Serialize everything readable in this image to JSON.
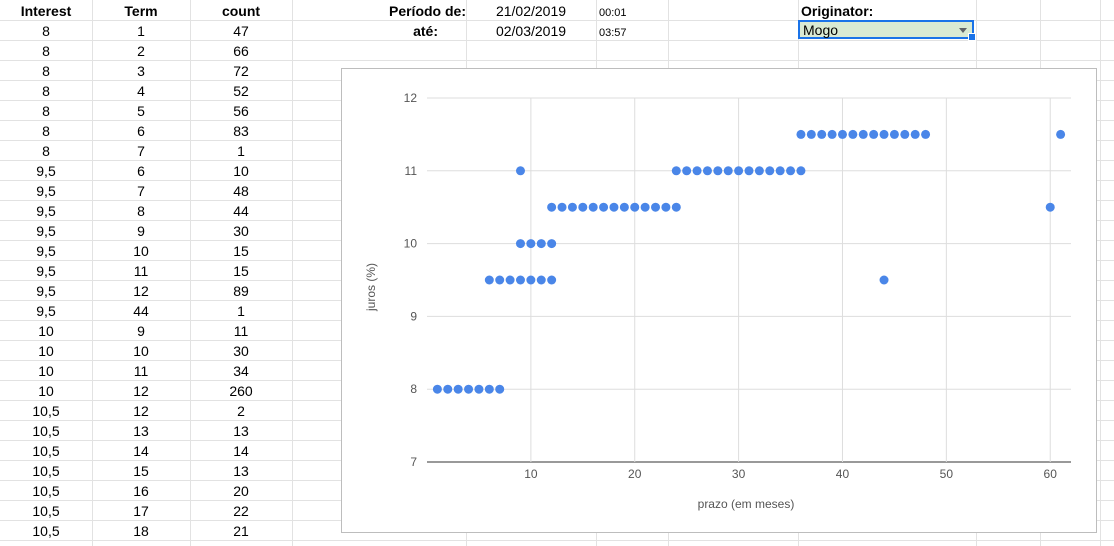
{
  "table": {
    "headers": [
      "Interest",
      "Term",
      "count"
    ],
    "rows": [
      [
        "8",
        "1",
        "47"
      ],
      [
        "8",
        "2",
        "66"
      ],
      [
        "8",
        "3",
        "72"
      ],
      [
        "8",
        "4",
        "52"
      ],
      [
        "8",
        "5",
        "56"
      ],
      [
        "8",
        "6",
        "83"
      ],
      [
        "8",
        "7",
        "1"
      ],
      [
        "9,5",
        "6",
        "10"
      ],
      [
        "9,5",
        "7",
        "48"
      ],
      [
        "9,5",
        "8",
        "44"
      ],
      [
        "9,5",
        "9",
        "30"
      ],
      [
        "9,5",
        "10",
        "15"
      ],
      [
        "9,5",
        "11",
        "15"
      ],
      [
        "9,5",
        "12",
        "89"
      ],
      [
        "9,5",
        "44",
        "1"
      ],
      [
        "10",
        "9",
        "11"
      ],
      [
        "10",
        "10",
        "30"
      ],
      [
        "10",
        "11",
        "34"
      ],
      [
        "10",
        "12",
        "260"
      ],
      [
        "10,5",
        "12",
        "2"
      ],
      [
        "10,5",
        "13",
        "13"
      ],
      [
        "10,5",
        "14",
        "14"
      ],
      [
        "10,5",
        "15",
        "13"
      ],
      [
        "10,5",
        "16",
        "20"
      ],
      [
        "10,5",
        "17",
        "22"
      ],
      [
        "10,5",
        "18",
        "21"
      ]
    ]
  },
  "filters": {
    "periodo_label": "Período de:",
    "ate_label": "até:",
    "start_date": "21/02/2019",
    "start_time": "00:01",
    "end_date": "02/03/2019",
    "end_time": "03:57",
    "originator_label": "Originator:",
    "originator_value": "Mogo"
  },
  "chart_data": {
    "type": "scatter",
    "title": "",
    "xlabel": "prazo (em meses)",
    "ylabel": "juros (%)",
    "xlim": [
      0,
      62
    ],
    "ylim": [
      7,
      12
    ],
    "xticks": [
      10,
      20,
      30,
      40,
      50,
      60
    ],
    "yticks": [
      7,
      8,
      9,
      10,
      11,
      12
    ],
    "grid": true,
    "color": "#4a86e8",
    "points": [
      [
        1,
        8
      ],
      [
        2,
        8
      ],
      [
        3,
        8
      ],
      [
        4,
        8
      ],
      [
        5,
        8
      ],
      [
        6,
        8
      ],
      [
        7,
        8
      ],
      [
        6,
        9.5
      ],
      [
        7,
        9.5
      ],
      [
        8,
        9.5
      ],
      [
        9,
        9.5
      ],
      [
        10,
        9.5
      ],
      [
        11,
        9.5
      ],
      [
        12,
        9.5
      ],
      [
        44,
        9.5
      ],
      [
        9,
        10
      ],
      [
        10,
        10
      ],
      [
        11,
        10
      ],
      [
        12,
        10
      ],
      [
        12,
        10.5
      ],
      [
        13,
        10.5
      ],
      [
        14,
        10.5
      ],
      [
        15,
        10.5
      ],
      [
        16,
        10.5
      ],
      [
        17,
        10.5
      ],
      [
        18,
        10.5
      ],
      [
        19,
        10.5
      ],
      [
        20,
        10.5
      ],
      [
        21,
        10.5
      ],
      [
        22,
        10.5
      ],
      [
        23,
        10.5
      ],
      [
        24,
        10.5
      ],
      [
        60,
        10.5
      ],
      [
        9,
        11
      ],
      [
        24,
        11
      ],
      [
        25,
        11
      ],
      [
        26,
        11
      ],
      [
        27,
        11
      ],
      [
        28,
        11
      ],
      [
        29,
        11
      ],
      [
        30,
        11
      ],
      [
        31,
        11
      ],
      [
        32,
        11
      ],
      [
        33,
        11
      ],
      [
        34,
        11
      ],
      [
        35,
        11
      ],
      [
        36,
        11
      ],
      [
        36,
        11.5
      ],
      [
        37,
        11.5
      ],
      [
        38,
        11.5
      ],
      [
        39,
        11.5
      ],
      [
        40,
        11.5
      ],
      [
        41,
        11.5
      ],
      [
        42,
        11.5
      ],
      [
        43,
        11.5
      ],
      [
        44,
        11.5
      ],
      [
        45,
        11.5
      ],
      [
        46,
        11.5
      ],
      [
        47,
        11.5
      ],
      [
        48,
        11.5
      ],
      [
        61,
        11.5
      ]
    ]
  }
}
